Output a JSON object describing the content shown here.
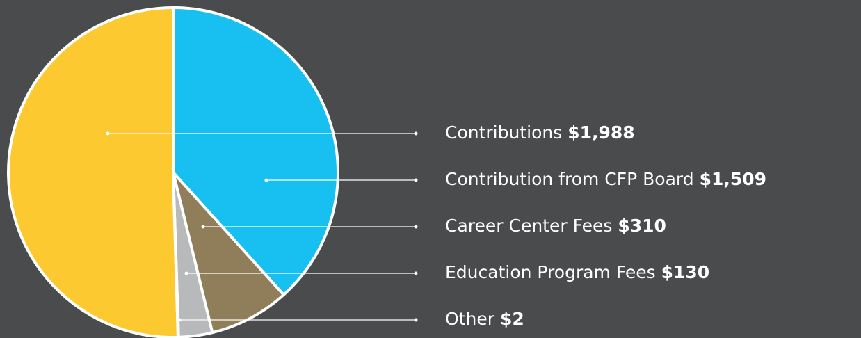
{
  "chart_data": {
    "type": "pie",
    "categories": [
      "Contributions",
      "Contribution from CFP Board",
      "Career Center Fees",
      "Education Program Fees",
      "Other"
    ],
    "values": [
      1988,
      1509,
      310,
      130,
      2
    ],
    "value_labels": [
      "$1,988",
      "$1,509",
      "$310",
      "$130",
      "$2"
    ],
    "colors": [
      "#fdc931",
      "#17c0f0",
      "#907e5a",
      "#b8b9bb",
      "#e8e8e8"
    ]
  }
}
